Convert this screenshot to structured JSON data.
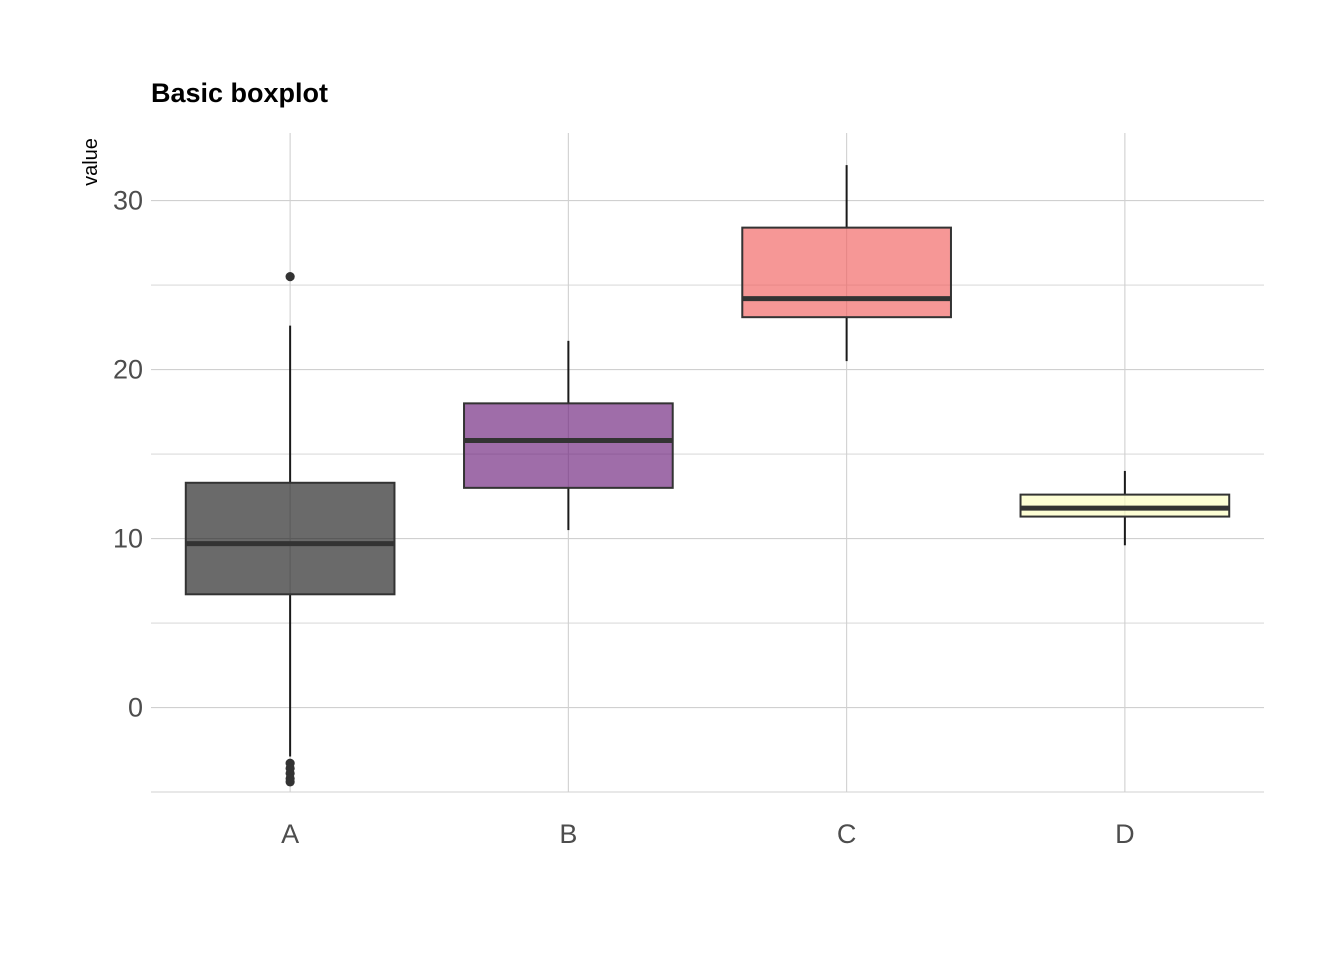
{
  "chart_data": {
    "type": "boxplot",
    "title": "Basic boxplot",
    "xlabel": "",
    "ylabel": "value",
    "ylim": [
      -5,
      34
    ],
    "yticks": [
      0,
      10,
      20,
      30
    ],
    "yticks_minor": [
      -5,
      5,
      15,
      25
    ],
    "grid": true,
    "legend": "none",
    "categories": [
      "A",
      "B",
      "C",
      "D"
    ],
    "boxes": [
      {
        "category": "A",
        "whisker_low": -2.9,
        "q1": 6.7,
        "median": 9.7,
        "q3": 13.3,
        "whisker_high": 22.6,
        "outliers": [
          25.5,
          -3.3,
          -3.6,
          -3.9,
          -4.2,
          -4.4
        ],
        "color": "#1a1a1a"
      },
      {
        "category": "B",
        "whisker_low": 10.5,
        "q1": 13.0,
        "median": 15.8,
        "q3": 18.0,
        "whisker_high": 21.7,
        "outliers": [],
        "color": "#6b1f7b"
      },
      {
        "category": "C",
        "whisker_low": 20.5,
        "q1": 23.1,
        "median": 24.2,
        "q3": 28.4,
        "whisker_high": 32.1,
        "outliers": [],
        "color": "#f1605d"
      },
      {
        "category": "D",
        "whisker_low": 9.6,
        "q1": 11.3,
        "median": 11.8,
        "q3": 12.6,
        "whisker_high": 14.0,
        "outliers": [],
        "color": "#fcfdbf"
      }
    ]
  }
}
